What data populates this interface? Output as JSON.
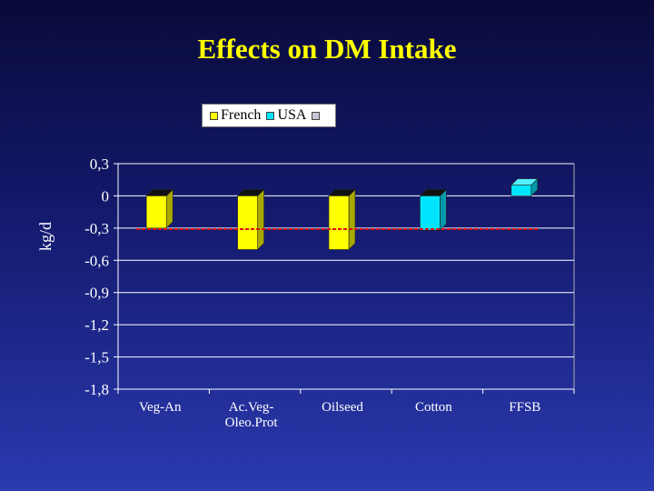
{
  "slide": {
    "title": "Effects on DM Intake"
  },
  "colors": {
    "french": "#ffff00",
    "usa": "#00e5ff",
    "third": "#c8c8d8",
    "reference_line": "#dd1111",
    "grid": "#ffffff"
  },
  "chart_data": {
    "type": "bar",
    "title": "Effects on DM Intake",
    "ylabel": "kg/d",
    "xlabel": "",
    "ylim": [
      -1.8,
      0.3
    ],
    "yticks": [
      "0,3",
      "0",
      "-0,3",
      "-0,6",
      "-0,9",
      "-1,2",
      "-1,5",
      "-1,8"
    ],
    "ytick_values": [
      0.3,
      0,
      -0.3,
      -0.6,
      -0.9,
      -1.2,
      -1.5,
      -1.8
    ],
    "categories": [
      "Veg-An",
      "Ac.Veg-Oleo.Prot",
      "Oilseed",
      "Cotton",
      "FFSB"
    ],
    "category_lines": [
      [
        "Veg-An"
      ],
      [
        "Ac.Veg-",
        "Oleo.Prot"
      ],
      [
        "Oilseed"
      ],
      [
        "Cotton"
      ],
      [
        "FFSB"
      ]
    ],
    "series": [
      {
        "name": "French",
        "values": [
          -0.3,
          -0.5,
          -0.5,
          null,
          null
        ]
      },
      {
        "name": "USA",
        "values": [
          null,
          null,
          null,
          -0.32,
          0.1
        ]
      },
      {
        "name": "",
        "values": [
          null,
          null,
          null,
          null,
          null
        ]
      }
    ],
    "reference_line_value": -0.31,
    "grid": true,
    "legend_position": "top-center"
  }
}
